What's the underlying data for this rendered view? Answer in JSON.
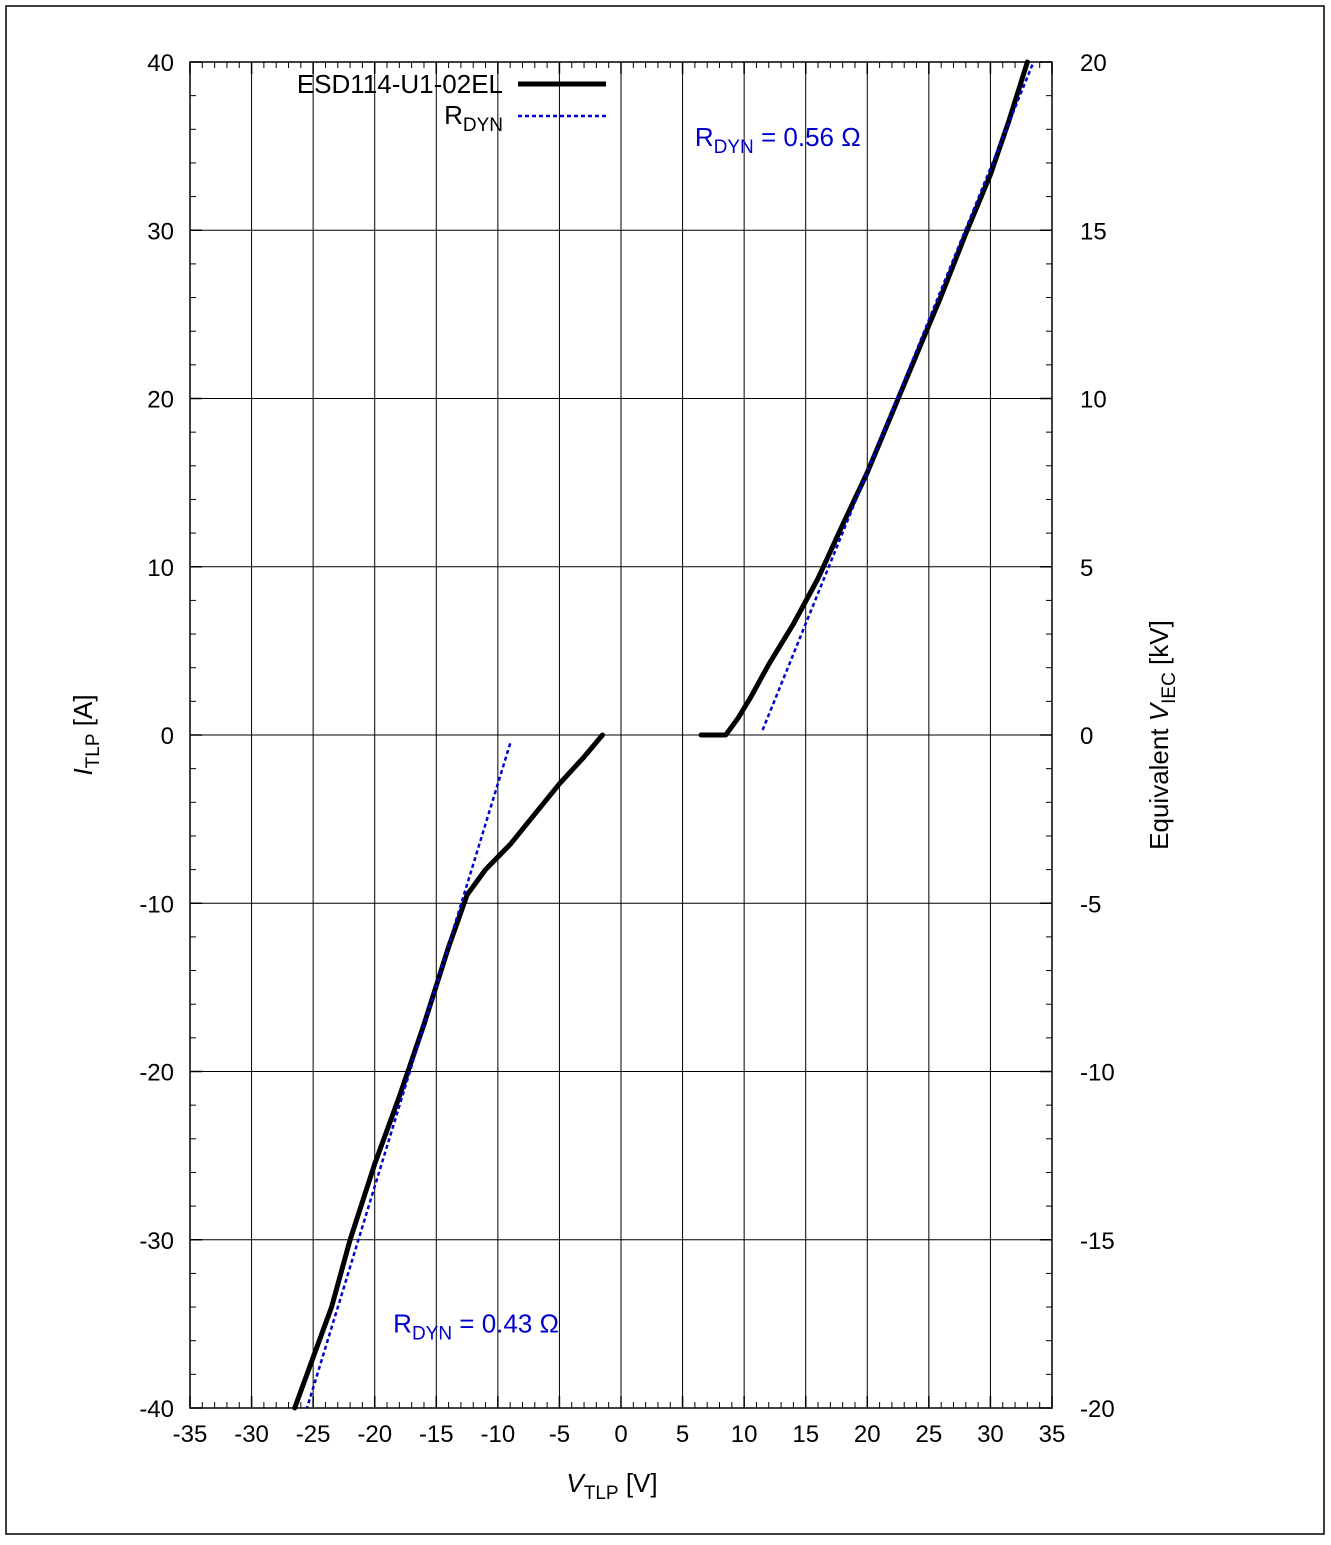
{
  "chart_data": {
    "type": "line",
    "title": "",
    "xlabel": {
      "main": "V",
      "sub": "TLP",
      "unit": " [V]"
    },
    "ylabel": {
      "main": "I",
      "sub": "TLP",
      "unit": " [A]"
    },
    "y2label": {
      "prefix": "Equivalent ",
      "main": "V",
      "sub": "IEC",
      "unit": "  [kV]"
    },
    "xlim": [
      -35,
      35
    ],
    "ylim": [
      -40,
      40
    ],
    "y2lim": [
      -20,
      20
    ],
    "xticks": [
      -35,
      -30,
      -25,
      -20,
      -15,
      -10,
      -5,
      0,
      5,
      10,
      15,
      20,
      25,
      30,
      35
    ],
    "yticks": [
      -40,
      -30,
      -20,
      -10,
      0,
      10,
      20,
      30,
      40
    ],
    "y2ticks": [
      -20,
      -15,
      -10,
      -5,
      0,
      5,
      10,
      15,
      20
    ],
    "grid": true,
    "legend_position": "top-left",
    "colors": {
      "device": "#000000",
      "rdyn": "#0000cc"
    },
    "series": [
      {
        "name": "ESD114-U1-02EL",
        "style": "solid",
        "segments": [
          [
            [
              6.5,
              0
            ],
            [
              8.5,
              0
            ],
            [
              9.5,
              1
            ],
            [
              10.5,
              2.2
            ],
            [
              12,
              4.2
            ],
            [
              14,
              6.6
            ],
            [
              16,
              9.3
            ],
            [
              18,
              12.5
            ],
            [
              20,
              15.6
            ],
            [
              22,
              19.1
            ],
            [
              24,
              22.6
            ],
            [
              26,
              26.1
            ],
            [
              28,
              29.8
            ],
            [
              30,
              33.3
            ],
            [
              31.5,
              36.5
            ],
            [
              33,
              40
            ]
          ],
          [
            [
              -1.5,
              0
            ],
            [
              -3,
              -1.3
            ],
            [
              -5,
              -2.9
            ],
            [
              -7,
              -4.7
            ],
            [
              -9,
              -6.5
            ],
            [
              -11,
              -8
            ],
            [
              -12.5,
              -9.5
            ],
            [
              -14,
              -12.6
            ],
            [
              -16,
              -17.2
            ],
            [
              -18,
              -21.5
            ],
            [
              -20,
              -25.5
            ],
            [
              -22,
              -30
            ],
            [
              -23.5,
              -34
            ],
            [
              -25,
              -37
            ],
            [
              -26.5,
              -40
            ]
          ]
        ]
      },
      {
        "name": "R",
        "name_sub": "DYN",
        "style": "dashed",
        "segments": [
          [
            [
              11.5,
              0.3
            ],
            [
              33.5,
              40
            ]
          ],
          [
            [
              -9,
              -0.5
            ],
            [
              -25.5,
              -40
            ]
          ]
        ]
      }
    ],
    "annotations": [
      {
        "id": "pos",
        "main": "R",
        "sub": "DYN",
        "rest": " = 0.56 Ω",
        "x": 6,
        "y": 35
      },
      {
        "id": "neg",
        "main": "R",
        "sub": "DYN",
        "rest": " = 0.43 Ω",
        "x": -18.5,
        "y": -35.5
      }
    ]
  }
}
